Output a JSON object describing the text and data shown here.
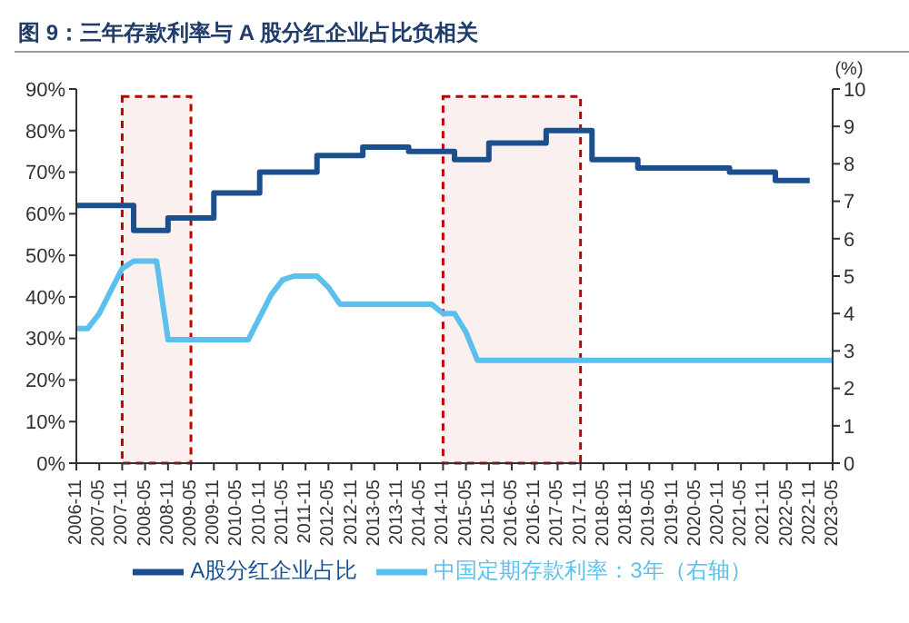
{
  "chart_data": {
    "type": "line",
    "title": "图 9：三年存款利率与 A 股分红企业占比负相关",
    "y2label": "(%)",
    "categories": [
      "2006-11",
      null,
      "2007-05",
      null,
      "2007-11",
      null,
      "2008-05",
      null,
      "2008-11",
      null,
      "2009-05",
      null,
      "2009-11",
      null,
      "2010-05",
      null,
      "2010-11",
      null,
      "2011-05",
      null,
      "2011-11",
      null,
      "2012-05",
      null,
      "2012-11",
      null,
      "2013-05",
      null,
      "2013-11",
      null,
      "2014-05",
      null,
      "2014-11",
      null,
      "2015-05",
      null,
      "2015-11",
      null,
      "2016-05",
      null,
      "2016-11",
      null,
      "2017-05",
      null,
      "2017-11",
      null,
      "2018-05",
      null,
      "2018-11",
      null,
      "2019-05",
      null,
      "2019-11",
      null,
      "2020-05",
      null,
      "2020-11",
      null,
      "2021-05",
      null,
      "2021-11",
      null,
      "2022-05",
      null,
      "2022-11",
      null,
      "2023-05"
    ],
    "series": [
      {
        "name": "A股分红企业占比",
        "type": "step",
        "color": "#1b4f8e",
        "values": [
          62,
          62,
          62,
          62,
          62,
          56,
          56,
          56,
          59,
          59,
          59,
          59,
          65,
          65,
          65,
          65,
          70,
          70,
          70,
          70,
          70,
          74,
          74,
          74,
          74,
          76,
          76,
          76,
          76,
          75,
          75,
          75,
          75,
          73,
          73,
          73,
          77,
          77,
          77,
          77,
          77,
          80,
          80,
          80,
          80,
          73,
          73,
          73,
          73,
          71,
          71,
          71,
          71,
          71,
          71,
          71,
          71,
          70,
          70,
          70,
          70,
          68,
          68,
          68,
          68,
          null,
          null
        ]
      },
      {
        "name": "中国定期存款利率：3年（右轴）",
        "type": "line",
        "axis": "y2",
        "color": "#5bc0eb",
        "values": [
          3.6,
          3.6,
          4.0,
          4.6,
          5.2,
          5.4,
          5.4,
          5.4,
          3.3,
          3.3,
          3.3,
          3.3,
          3.3,
          3.3,
          3.3,
          3.3,
          3.9,
          4.5,
          4.9,
          5.0,
          5.0,
          5.0,
          4.7,
          4.25,
          4.25,
          4.25,
          4.25,
          4.25,
          4.25,
          4.25,
          4.25,
          4.25,
          4.0,
          4.0,
          3.5,
          2.75,
          2.75,
          2.75,
          2.75,
          2.75,
          2.75,
          2.75,
          2.75,
          2.75,
          2.75,
          2.75,
          2.75,
          2.75,
          2.75,
          2.75,
          2.75,
          2.75,
          2.75,
          2.75,
          2.75,
          2.75,
          2.75,
          2.75,
          2.75,
          2.75,
          2.75,
          2.75,
          2.75,
          2.75,
          2.75,
          2.75,
          2.75
        ]
      }
    ],
    "ylim": [
      0,
      90
    ],
    "yticks": [
      {
        "value": 0,
        "label": "0%"
      },
      {
        "value": 10,
        "label": "10%"
      },
      {
        "value": 20,
        "label": "20%"
      },
      {
        "value": 30,
        "label": "30%"
      },
      {
        "value": 40,
        "label": "40%"
      },
      {
        "value": 50,
        "label": "50%"
      },
      {
        "value": 60,
        "label": "60%"
      },
      {
        "value": 70,
        "label": "70%"
      },
      {
        "value": 80,
        "label": "80%"
      },
      {
        "value": 90,
        "label": "90%"
      }
    ],
    "y2lim": [
      0,
      10
    ],
    "y2ticks": [
      0,
      1,
      2,
      3,
      4,
      5,
      6,
      7,
      8,
      9,
      10
    ],
    "bands": [
      {
        "axis": "x",
        "from": "2007-11",
        "to": "2009-05",
        "color": "#c00000"
      },
      {
        "axis": "x",
        "from": "2014-11",
        "to": "2017-11",
        "color": "#c00000"
      }
    ],
    "grid": false,
    "legend": "bottom",
    "marker": "none"
  }
}
